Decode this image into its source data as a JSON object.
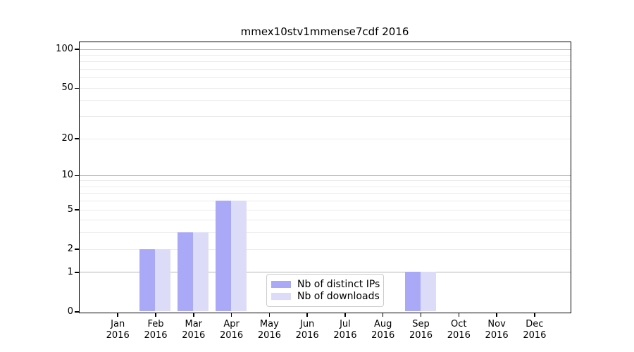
{
  "title": "mmex10stv1mmense7cdf 2016",
  "legend": {
    "items": [
      {
        "label": "Nb of distinct IPs",
        "color": "#a9a9f8"
      },
      {
        "label": "Nb of downloads",
        "color": "#dcdcf8"
      }
    ]
  },
  "chart_data": {
    "type": "bar",
    "title": "mmex10stv1mmense7cdf 2016",
    "categories": [
      "Jan",
      "Feb",
      "Mar",
      "Apr",
      "May",
      "Jun",
      "Jul",
      "Aug",
      "Sep",
      "Oct",
      "Nov",
      "Dec"
    ],
    "year_label": "2016",
    "series": [
      {
        "name": "Nb of distinct IPs",
        "color": "#a9a9f8",
        "values": [
          0,
          2,
          3,
          6,
          0,
          0,
          0,
          0,
          1,
          0,
          0,
          0
        ]
      },
      {
        "name": "Nb of downloads",
        "color": "#dcdcf8",
        "values": [
          0,
          2,
          3,
          6,
          0,
          0,
          0,
          0,
          1,
          0,
          0,
          0
        ]
      }
    ],
    "y_axis": {
      "scale": "log1p",
      "tick_values": [
        0,
        1,
        2,
        5,
        10,
        20,
        50,
        100
      ],
      "major_gridlines": [
        1,
        10,
        100
      ],
      "minor_gridlines": [
        2,
        3,
        4,
        5,
        6,
        7,
        8,
        9,
        20,
        30,
        40,
        50,
        60,
        70,
        80,
        90
      ],
      "range": [
        0,
        115
      ]
    },
    "xlabel": "",
    "ylabel": "",
    "grid": true,
    "legend_position": "lower center"
  }
}
